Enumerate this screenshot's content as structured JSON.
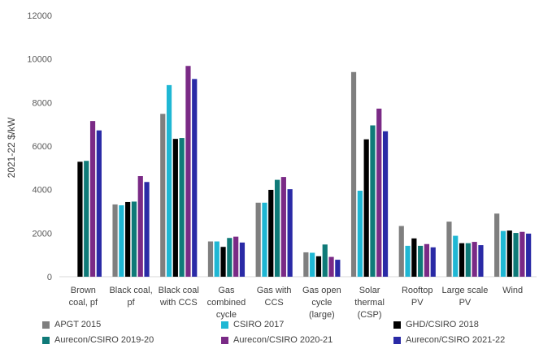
{
  "chart_data": {
    "type": "bar",
    "title": "",
    "xlabel": "",
    "ylabel": "2021-22 $/kW",
    "ylim": [
      0,
      12000
    ],
    "yticks": [
      0,
      2000,
      4000,
      6000,
      8000,
      10000,
      12000
    ],
    "grid": false,
    "legend_position": "bottom",
    "categories": [
      [
        "Brown",
        "coal, pf"
      ],
      [
        "Black coal,",
        "pf"
      ],
      [
        "Black coal",
        "with CCS"
      ],
      [
        "Gas",
        "combined",
        "cycle"
      ],
      [
        "Gas with",
        "CCS"
      ],
      [
        "Gas open",
        "cycle",
        "(large)"
      ],
      [
        "Solar",
        "thermal",
        "(CSP)"
      ],
      [
        "Rooftop",
        "PV"
      ],
      [
        "Large scale",
        "PV"
      ],
      [
        "Wind"
      ]
    ],
    "series": [
      {
        "name": "APGT 2015",
        "color": "#7f7f7f",
        "values": [
          null,
          3320,
          7480,
          1620,
          3400,
          1120,
          9400,
          2330,
          2530,
          2900
        ]
      },
      {
        "name": "CSIRO 2017",
        "color": "#1fb7d4",
        "values": [
          null,
          3280,
          8800,
          1620,
          3400,
          1100,
          3950,
          1420,
          1880,
          2100
        ]
      },
      {
        "name": "GHD/CSIRO 2018",
        "color": "#000000",
        "values": [
          5280,
          3430,
          6330,
          1370,
          3990,
          940,
          6310,
          1760,
          1540,
          2120
        ]
      },
      {
        "name": "Aurecon/CSIRO 2019-20",
        "color": "#0f7a78",
        "values": [
          5320,
          3450,
          6370,
          1780,
          4450,
          1480,
          6950,
          1420,
          1540,
          2010
        ]
      },
      {
        "name": "Aurecon/CSIRO 2020-21",
        "color": "#7a2a86",
        "values": [
          7150,
          4620,
          9680,
          1840,
          4580,
          910,
          7720,
          1500,
          1600,
          2060
        ]
      },
      {
        "name": "Aurecon/CSIRO 2021-22",
        "color": "#2a2aa6",
        "values": [
          6720,
          4350,
          9080,
          1570,
          4020,
          780,
          6680,
          1350,
          1450,
          1980
        ]
      }
    ]
  }
}
